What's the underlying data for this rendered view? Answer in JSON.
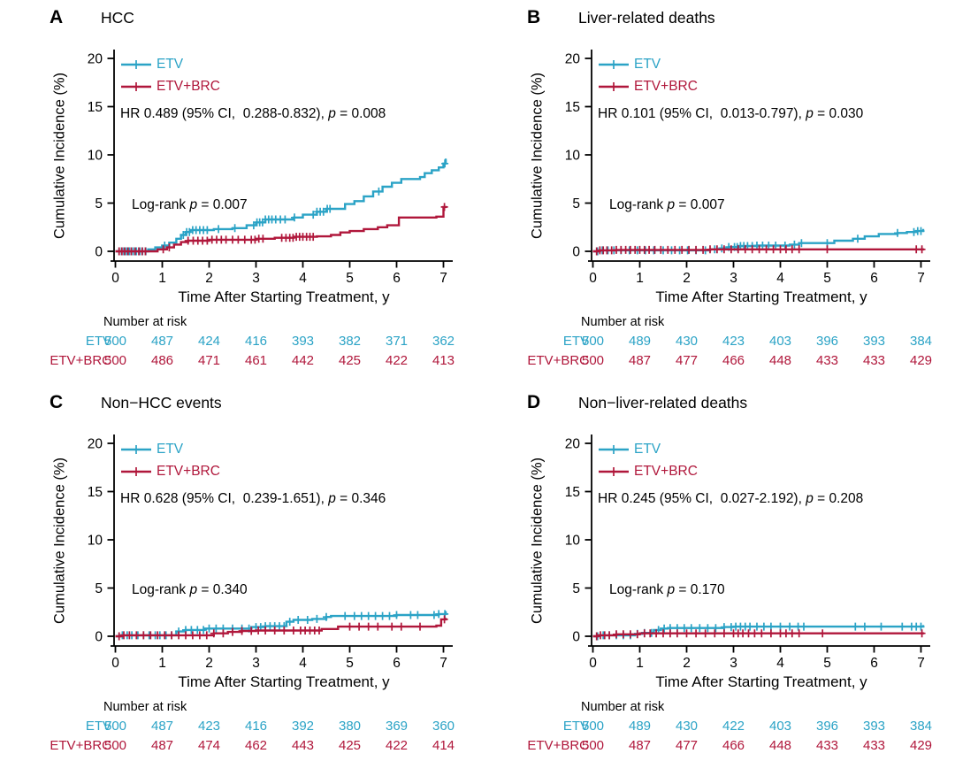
{
  "figure": {
    "ylabel": "Cumulative Incidence (%)",
    "xlabel": "Time After Starting Treatment, y",
    "risk_header": "Number at risk",
    "p_symbol": "p",
    "x_ticks": [
      0,
      1,
      2,
      3,
      4,
      5,
      6,
      7
    ],
    "y_ticks": [
      0,
      5,
      10,
      15,
      20
    ],
    "xlim": [
      0,
      7.3
    ],
    "ylim": [
      0,
      20
    ],
    "colors": {
      "etv": "#2BA3C6",
      "brc": "#B0173B",
      "axis": "#000000"
    },
    "legend": [
      {
        "key": "etv",
        "label": "ETV"
      },
      {
        "key": "brc",
        "label": "ETV+BRC"
      }
    ]
  },
  "chart_data": [
    {
      "type": "line",
      "panel_label": "A",
      "title": "HCC",
      "hr_text": "HR 0.489 (95% CI,  0.288-0.832), ",
      "hr_p": " = 0.008",
      "logrank_text": "Log-rank ",
      "logrank_p": " = 0.007",
      "series": [
        {
          "name": "ETV",
          "key": "etv",
          "steps": [
            [
              0,
              0
            ],
            [
              0.7,
              0.2
            ],
            [
              0.85,
              0.4
            ],
            [
              1.0,
              0.6
            ],
            [
              1.15,
              0.9
            ],
            [
              1.3,
              1.3
            ],
            [
              1.4,
              1.7
            ],
            [
              1.5,
              2.0
            ],
            [
              1.6,
              2.2
            ],
            [
              2.1,
              2.3
            ],
            [
              2.5,
              2.4
            ],
            [
              2.8,
              2.7
            ],
            [
              3.0,
              3.0
            ],
            [
              3.2,
              3.3
            ],
            [
              3.8,
              3.5
            ],
            [
              4.0,
              3.8
            ],
            [
              4.3,
              4.1
            ],
            [
              4.5,
              4.4
            ],
            [
              4.9,
              4.9
            ],
            [
              5.1,
              5.2
            ],
            [
              5.3,
              5.7
            ],
            [
              5.5,
              6.2
            ],
            [
              5.7,
              6.7
            ],
            [
              5.9,
              7.1
            ],
            [
              6.1,
              7.5
            ],
            [
              6.5,
              7.7
            ],
            [
              6.6,
              8.1
            ],
            [
              6.75,
              8.4
            ],
            [
              6.9,
              8.7
            ],
            [
              7.0,
              9.1
            ],
            [
              7.05,
              9.5
            ]
          ],
          "censors": [
            0.08,
            0.13,
            0.18,
            0.24,
            0.3,
            0.38,
            0.45,
            0.52,
            0.58,
            0.65,
            1.05,
            1.45,
            1.52,
            1.58,
            1.65,
            1.72,
            1.8,
            1.88,
            1.96,
            2.2,
            2.55,
            2.95,
            3.02,
            3.08,
            3.14,
            3.2,
            3.27,
            3.34,
            3.42,
            3.52,
            3.62,
            3.82,
            4.22,
            4.3,
            4.37,
            4.44,
            4.52,
            4.58,
            5.62,
            7.03
          ]
        },
        {
          "name": "ETV+BRC",
          "key": "brc",
          "steps": [
            [
              0,
              0
            ],
            [
              0.9,
              0.2
            ],
            [
              1.1,
              0.4
            ],
            [
              1.25,
              0.7
            ],
            [
              1.4,
              0.95
            ],
            [
              1.55,
              1.1
            ],
            [
              2.0,
              1.2
            ],
            [
              3.0,
              1.3
            ],
            [
              3.4,
              1.4
            ],
            [
              3.8,
              1.5
            ],
            [
              4.3,
              1.55
            ],
            [
              4.6,
              1.7
            ],
            [
              4.8,
              1.95
            ],
            [
              5.0,
              2.1
            ],
            [
              5.3,
              2.3
            ],
            [
              5.6,
              2.5
            ],
            [
              5.8,
              2.7
            ],
            [
              6.05,
              3.5
            ],
            [
              6.85,
              3.6
            ],
            [
              7.0,
              4.6
            ]
          ],
          "censors": [
            0.08,
            0.14,
            0.2,
            0.27,
            0.34,
            0.42,
            0.5,
            0.57,
            0.64,
            1.02,
            1.15,
            1.55,
            1.66,
            1.76,
            1.86,
            1.96,
            2.06,
            2.16,
            2.26,
            2.36,
            2.5,
            2.62,
            2.76,
            2.9,
            2.98,
            3.06,
            3.15,
            3.55,
            3.64,
            3.72,
            3.79,
            3.86,
            3.93,
            4.0,
            4.08,
            4.15,
            4.22,
            7.02
          ]
        }
      ],
      "number_at_risk": {
        "times": [
          0,
          1,
          2,
          3,
          4,
          5,
          6,
          7
        ],
        "rows": [
          {
            "label": "ETV",
            "key": "etv",
            "values": [
              500,
              487,
              424,
              416,
              393,
              382,
              371,
              362
            ]
          },
          {
            "label": "ETV+BRC",
            "key": "brc",
            "values": [
              500,
              486,
              471,
              461,
              442,
              425,
              422,
              413
            ]
          }
        ]
      }
    },
    {
      "type": "line",
      "panel_label": "B",
      "title": "Liver-related deaths",
      "hr_text": "HR 0.101 (95% CI,  0.013-0.797), ",
      "hr_p": " = 0.030",
      "logrank_text": "Log-rank ",
      "logrank_p": " = 0.007",
      "series": [
        {
          "name": "ETV",
          "key": "etv",
          "steps": [
            [
              0,
              0
            ],
            [
              0.15,
              0.1
            ],
            [
              2.5,
              0.2
            ],
            [
              2.7,
              0.3
            ],
            [
              2.9,
              0.45
            ],
            [
              3.1,
              0.55
            ],
            [
              3.5,
              0.6
            ],
            [
              4.2,
              0.7
            ],
            [
              4.4,
              0.85
            ],
            [
              5.15,
              1.1
            ],
            [
              5.55,
              1.3
            ],
            [
              5.8,
              1.55
            ],
            [
              6.1,
              1.8
            ],
            [
              6.5,
              1.9
            ],
            [
              6.7,
              2.0
            ],
            [
              6.9,
              2.1
            ],
            [
              7.05,
              2.2
            ]
          ],
          "censors": [
            0.1,
            0.2,
            0.32,
            0.45,
            0.6,
            0.78,
            0.95,
            1.12,
            1.3,
            1.5,
            1.68,
            1.85,
            2.02,
            2.2,
            2.4,
            2.6,
            2.75,
            2.9,
            3.02,
            3.08,
            3.15,
            3.22,
            3.3,
            3.4,
            3.5,
            3.62,
            3.75,
            3.9,
            4.1,
            4.3,
            4.45,
            5.0,
            5.65,
            6.5,
            6.85,
            6.93,
            7.0
          ]
        },
        {
          "name": "ETV+BRC",
          "key": "brc",
          "steps": [
            [
              0,
              0
            ],
            [
              0.15,
              0.1
            ],
            [
              0.5,
              0.15
            ],
            [
              2.5,
              0.2
            ],
            [
              7.05,
              0.2
            ]
          ],
          "censors": [
            0.08,
            0.15,
            0.22,
            0.3,
            0.4,
            0.5,
            0.6,
            0.7,
            0.8,
            0.9,
            1.0,
            1.1,
            1.2,
            1.32,
            1.45,
            1.6,
            1.75,
            1.9,
            2.05,
            2.2,
            2.35,
            2.5,
            2.65,
            2.8,
            2.95,
            3.1,
            3.25,
            3.4,
            3.55,
            3.7,
            3.85,
            4.0,
            4.12,
            4.25,
            4.4,
            5.0,
            6.9,
            7.02
          ]
        }
      ],
      "number_at_risk": {
        "times": [
          0,
          1,
          2,
          3,
          4,
          5,
          6,
          7
        ],
        "rows": [
          {
            "label": "ETV",
            "key": "etv",
            "values": [
              500,
              489,
              430,
              423,
              403,
              396,
              393,
              384
            ]
          },
          {
            "label": "ETV+BRC",
            "key": "brc",
            "values": [
              500,
              487,
              477,
              466,
              448,
              433,
              433,
              429
            ]
          }
        ]
      }
    },
    {
      "type": "line",
      "panel_label": "C",
      "title": "Non−HCC events",
      "hr_text": "HR 0.628 (95% CI,  0.239-1.651), ",
      "hr_p": " = 0.346",
      "logrank_text": "Log-rank ",
      "logrank_p": " = 0.340",
      "series": [
        {
          "name": "ETV",
          "key": "etv",
          "steps": [
            [
              0,
              0
            ],
            [
              0.1,
              0.1
            ],
            [
              1.3,
              0.5
            ],
            [
              1.5,
              0.65
            ],
            [
              1.9,
              0.8
            ],
            [
              2.9,
              0.95
            ],
            [
              3.2,
              1.05
            ],
            [
              3.65,
              1.5
            ],
            [
              3.8,
              1.7
            ],
            [
              4.2,
              1.8
            ],
            [
              4.5,
              2.0
            ],
            [
              4.6,
              2.1
            ],
            [
              6.0,
              2.2
            ],
            [
              6.9,
              2.3
            ],
            [
              7.05,
              2.5
            ]
          ],
          "censors": [
            0.08,
            0.15,
            0.25,
            0.35,
            0.48,
            0.6,
            0.72,
            0.85,
            0.95,
            1.08,
            1.2,
            1.35,
            1.5,
            1.62,
            1.75,
            1.88,
            2.0,
            2.15,
            2.3,
            2.5,
            2.7,
            2.85,
            3.0,
            3.1,
            3.2,
            3.3,
            3.4,
            3.5,
            3.6,
            3.72,
            3.9,
            4.1,
            4.3,
            4.5,
            4.9,
            5.1,
            5.25,
            5.4,
            5.55,
            5.7,
            5.85,
            6.0,
            6.3,
            6.45,
            6.8,
            6.9,
            7.03
          ]
        },
        {
          "name": "ETV+BRC",
          "key": "brc",
          "steps": [
            [
              0,
              0
            ],
            [
              0.15,
              0.1
            ],
            [
              2.1,
              0.3
            ],
            [
              2.4,
              0.45
            ],
            [
              2.7,
              0.55
            ],
            [
              3.0,
              0.6
            ],
            [
              4.4,
              0.75
            ],
            [
              4.75,
              1.0
            ],
            [
              6.85,
              1.1
            ],
            [
              6.95,
              1.75
            ],
            [
              7.05,
              1.8
            ]
          ],
          "censors": [
            0.08,
            0.18,
            0.3,
            0.45,
            0.6,
            0.75,
            0.9,
            1.05,
            1.2,
            1.35,
            1.5,
            1.65,
            1.8,
            1.95,
            2.1,
            2.3,
            2.5,
            2.7,
            2.9,
            3.05,
            3.2,
            3.4,
            3.6,
            3.8,
            3.95,
            4.05,
            4.15,
            4.25,
            4.35,
            5.0,
            5.2,
            5.4,
            5.6,
            5.9,
            6.1,
            6.5,
            7.02
          ]
        }
      ],
      "number_at_risk": {
        "times": [
          0,
          1,
          2,
          3,
          4,
          5,
          6,
          7
        ],
        "rows": [
          {
            "label": "ETV",
            "key": "etv",
            "values": [
              500,
              487,
              423,
              416,
              392,
              380,
              369,
              360
            ]
          },
          {
            "label": "ETV+BRC",
            "key": "brc",
            "values": [
              500,
              487,
              474,
              462,
              443,
              425,
              422,
              414
            ]
          }
        ]
      }
    },
    {
      "type": "line",
      "panel_label": "D",
      "title": "Non−liver-related deaths",
      "hr_text": "HR 0.245 (95% CI,  0.027-2.192), ",
      "hr_p": " = 0.208",
      "logrank_text": "Log-rank ",
      "logrank_p": " = 0.170",
      "series": [
        {
          "name": "ETV",
          "key": "etv",
          "steps": [
            [
              0,
              0
            ],
            [
              0.12,
              0.1
            ],
            [
              0.9,
              0.25
            ],
            [
              1.05,
              0.35
            ],
            [
              1.3,
              0.65
            ],
            [
              1.45,
              0.8
            ],
            [
              1.6,
              0.85
            ],
            [
              2.8,
              0.95
            ],
            [
              3.0,
              1.0
            ],
            [
              7.05,
              1.05
            ]
          ],
          "censors": [
            0.1,
            0.22,
            0.35,
            0.5,
            0.65,
            0.8,
            0.95,
            1.1,
            1.25,
            1.4,
            1.52,
            1.65,
            1.8,
            1.95,
            2.1,
            2.28,
            2.45,
            2.62,
            2.8,
            2.95,
            3.05,
            3.15,
            3.25,
            3.35,
            3.5,
            3.65,
            3.8,
            4.0,
            4.2,
            4.38,
            4.5,
            5.6,
            5.8,
            6.15,
            6.6,
            6.8,
            6.9,
            7.0
          ]
        },
        {
          "name": "ETV+BRC",
          "key": "brc",
          "steps": [
            [
              0,
              0
            ],
            [
              0.1,
              0.1
            ],
            [
              0.5,
              0.2
            ],
            [
              1.0,
              0.3
            ],
            [
              7.05,
              0.3
            ]
          ],
          "censors": [
            0.08,
            0.16,
            0.25,
            0.35,
            0.5,
            0.65,
            0.8,
            0.95,
            1.1,
            1.22,
            1.35,
            1.5,
            1.65,
            1.8,
            2.0,
            2.2,
            2.4,
            2.6,
            2.8,
            3.0,
            3.1,
            3.2,
            3.32,
            3.45,
            3.6,
            3.8,
            4.0,
            4.12,
            4.25,
            4.4,
            4.9,
            7.02
          ]
        }
      ],
      "number_at_risk": {
        "times": [
          0,
          1,
          2,
          3,
          4,
          5,
          6,
          7
        ],
        "rows": [
          {
            "label": "ETV",
            "key": "etv",
            "values": [
              500,
              489,
              430,
              422,
              403,
              396,
              393,
              384
            ]
          },
          {
            "label": "ETV+BRC",
            "key": "brc",
            "values": [
              500,
              487,
              477,
              466,
              448,
              433,
              433,
              429
            ]
          }
        ]
      }
    }
  ]
}
